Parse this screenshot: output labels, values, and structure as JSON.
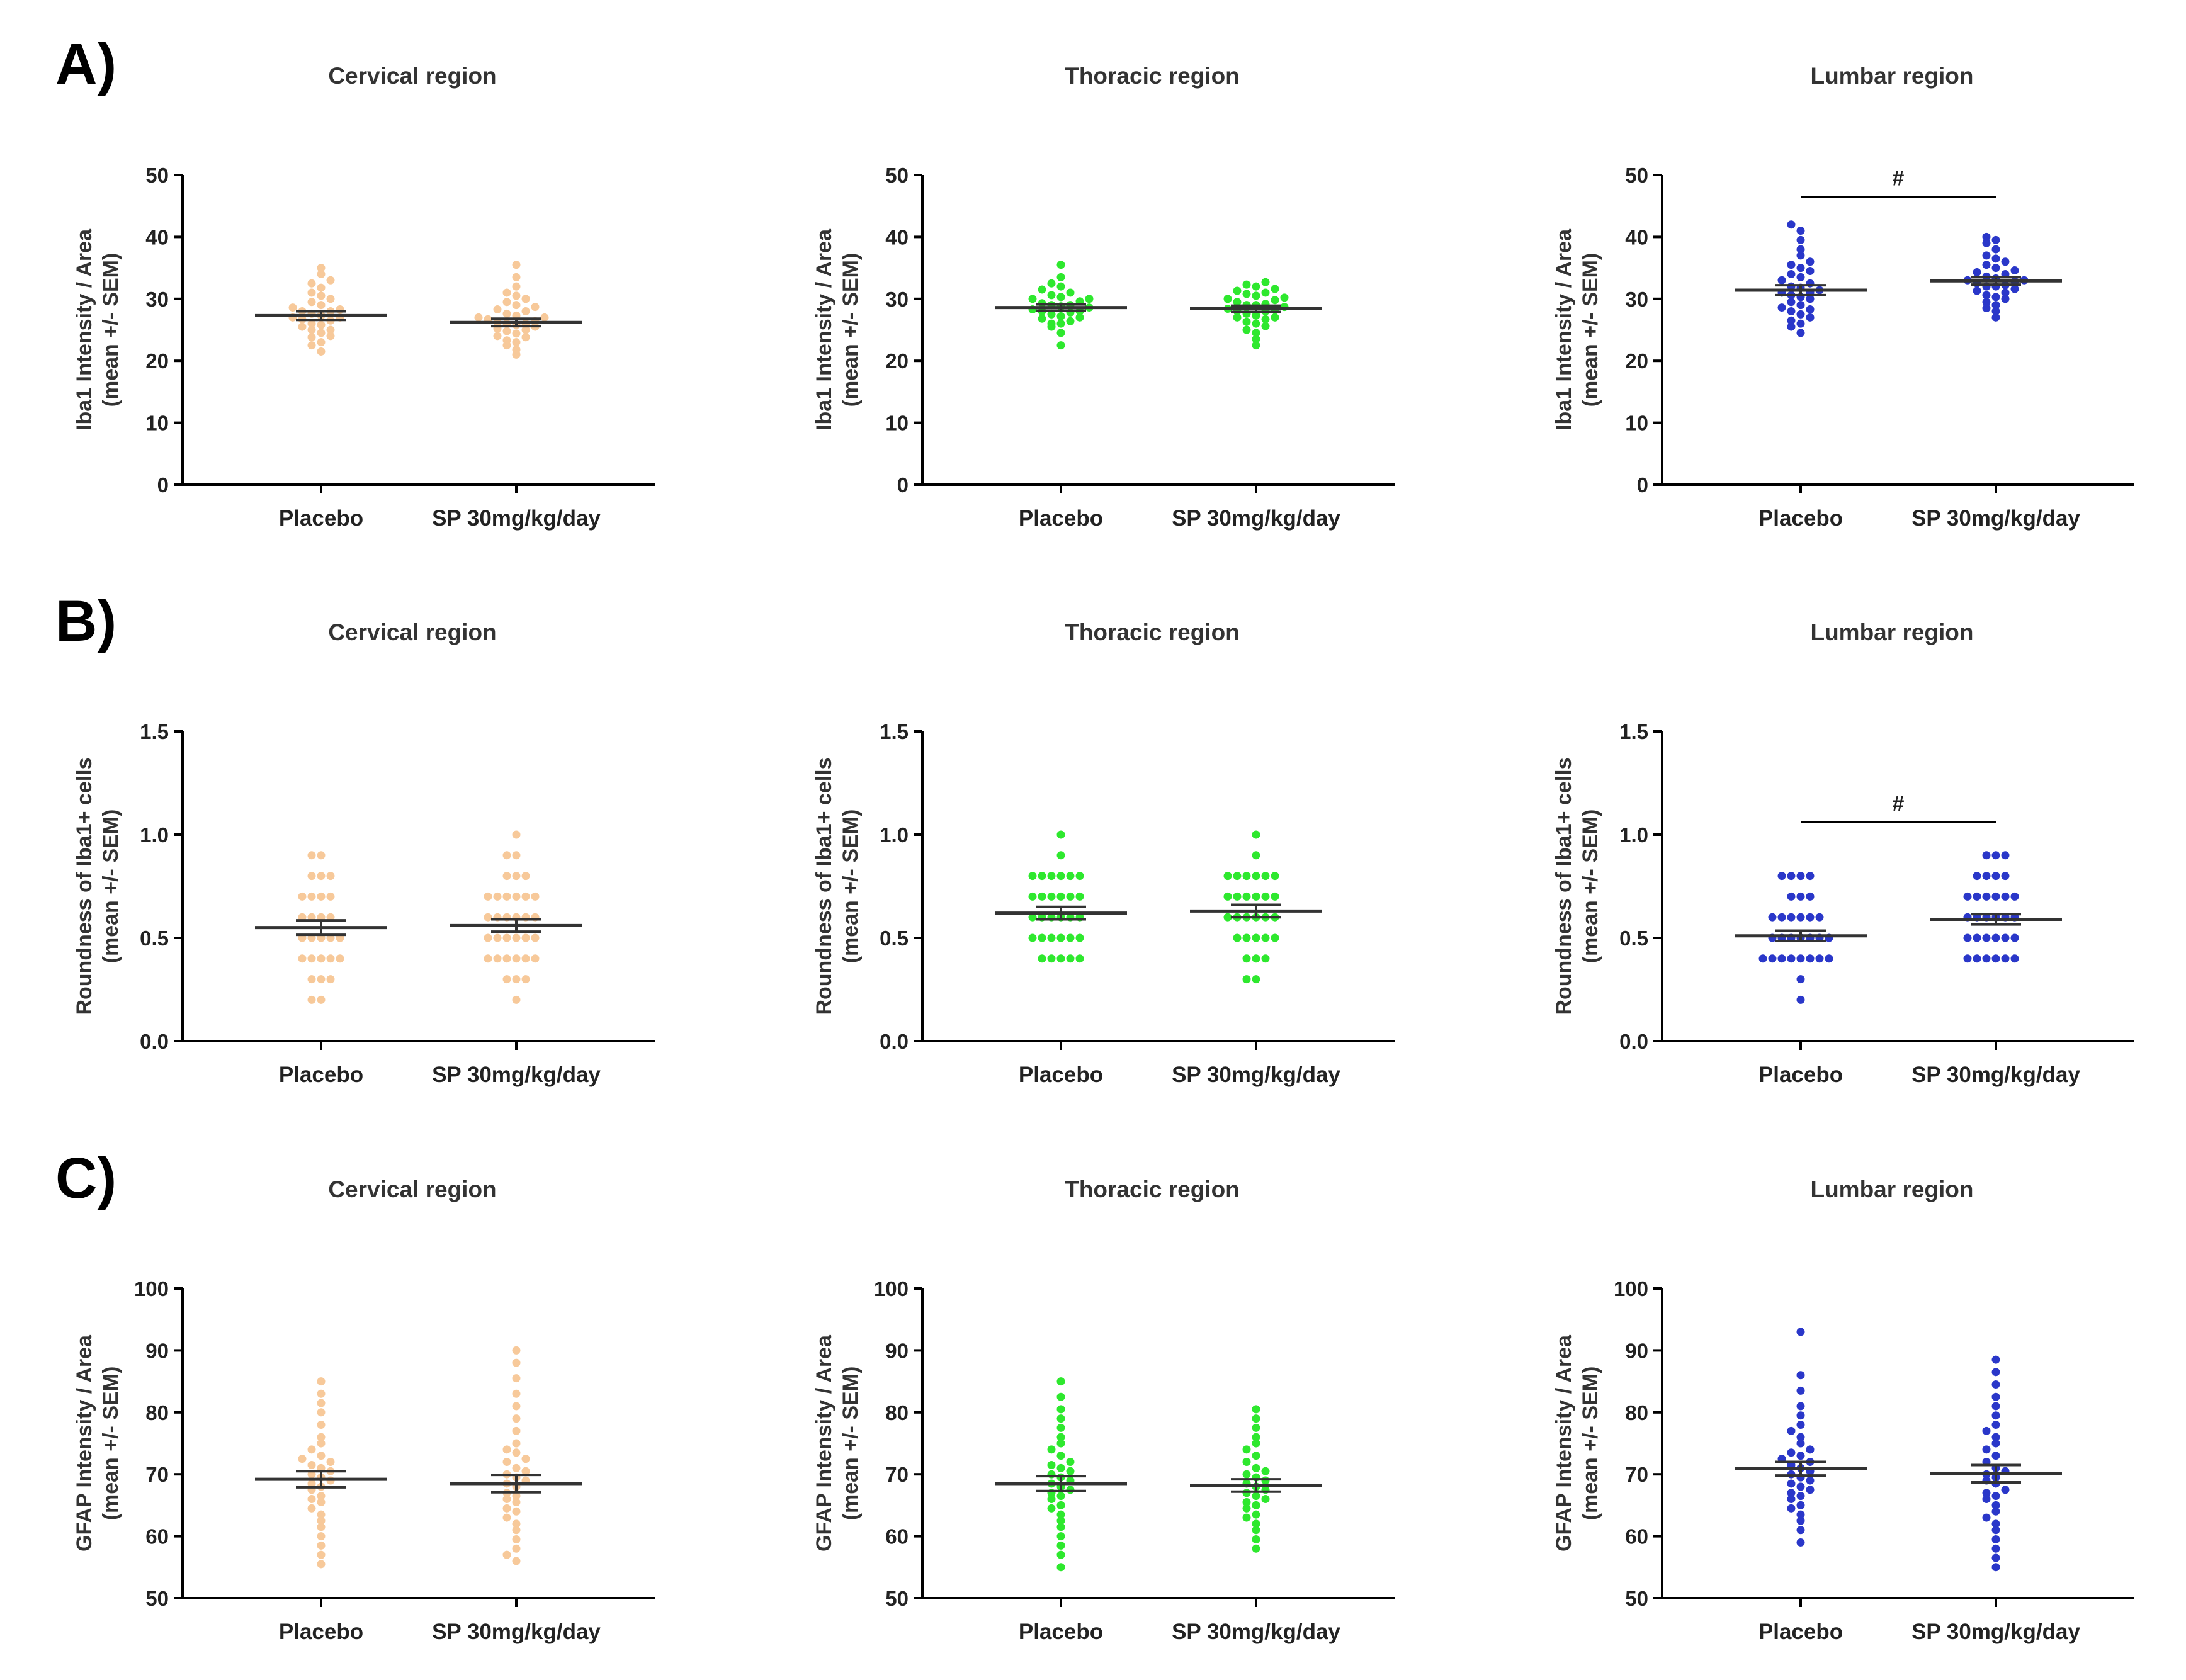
{
  "figure": {
    "rows": [
      {
        "label": "A)",
        "ylabel_line1": "Iba1 Intensity / Area",
        "ylabel_line2": "(mean +/- SEM)"
      },
      {
        "label": "B)",
        "ylabel_line1": "Roundness of Iba1+ cells",
        "ylabel_line2": "(mean +/- SEM)"
      },
      {
        "label": "C)",
        "ylabel_line1": "GFAP Intensity / Area",
        "ylabel_line2": "(mean +/- SEM)"
      }
    ]
  },
  "colors": {
    "cervical": "#f7c99a",
    "thoracic": "#2ee82e",
    "lumbar": "#2a37c9",
    "axis": "#000000",
    "mean_line": "#444444"
  },
  "chart_data": [
    {
      "id": "A-cervical",
      "type": "scatter",
      "title": "Cervical region",
      "series_color": "cervical",
      "ylabel": "Iba1 Intensity / Area (mean +/- SEM)",
      "ylim": [
        0,
        50
      ],
      "yticks": [
        "0",
        "10",
        "20",
        "30",
        "40",
        "50"
      ],
      "ytick_values": [
        0,
        10,
        20,
        30,
        40,
        50
      ],
      "categories": [
        "Placebo",
        "SP 30mg/kg/day"
      ],
      "groups": [
        {
          "name": "Placebo",
          "mean": 27.3,
          "sem": 0.7,
          "values": [
            21.5,
            22.5,
            23,
            23.8,
            24,
            24.5,
            25,
            25,
            25.5,
            25.8,
            26,
            26.5,
            26.7,
            27,
            27,
            27.3,
            27.6,
            28,
            28,
            28.3,
            28.6,
            29,
            29.5,
            30,
            30.5,
            31,
            31.8,
            32.5,
            33,
            34,
            35
          ]
        },
        {
          "name": "SP 30mg/kg/day",
          "mean": 26.2,
          "sem": 0.6,
          "values": [
            21,
            21.8,
            22.5,
            23,
            23.3,
            23.8,
            24,
            24.4,
            24.8,
            25,
            25.2,
            25.5,
            25.8,
            26,
            26,
            26.2,
            26.4,
            26.7,
            27,
            27,
            27.3,
            27.6,
            28,
            28.3,
            28.7,
            29,
            29.5,
            30,
            30.5,
            31,
            32,
            33.5,
            35.5
          ]
        }
      ]
    },
    {
      "id": "A-thoracic",
      "type": "scatter",
      "title": "Thoracic region",
      "series_color": "thoracic",
      "ylabel": "Iba1 Intensity / Area (mean +/- SEM)",
      "ylim": [
        0,
        50
      ],
      "yticks": [
        "0",
        "10",
        "20",
        "30",
        "40",
        "50"
      ],
      "ytick_values": [
        0,
        10,
        20,
        30,
        40,
        50
      ],
      "categories": [
        "Placebo",
        "SP 30mg/kg/day"
      ],
      "groups": [
        {
          "name": "Placebo",
          "mean": 28.6,
          "sem": 0.5,
          "values": [
            22.5,
            24.5,
            25.5,
            26,
            26,
            26.4,
            26.8,
            27,
            27.2,
            27.5,
            27.8,
            28,
            28,
            28.3,
            28.6,
            28.8,
            29,
            29,
            29.3,
            29.6,
            30,
            30,
            30.3,
            30.6,
            31,
            31.5,
            32,
            32.5,
            33.5,
            35.5
          ]
        },
        {
          "name": "SP 30mg/kg/day",
          "mean": 28.4,
          "sem": 0.5,
          "values": [
            22.5,
            23.5,
            24.5,
            25,
            25.6,
            26,
            26.3,
            26.7,
            27,
            27,
            27.3,
            27.6,
            28,
            28,
            28.2,
            28.4,
            28.7,
            29,
            29,
            29.2,
            29.5,
            29.8,
            30,
            30.2,
            30.5,
            30.8,
            31,
            31.3,
            31.6,
            32,
            32.3,
            32.7
          ]
        }
      ]
    },
    {
      "id": "A-lumbar",
      "type": "scatter",
      "title": "Lumbar region",
      "series_color": "lumbar",
      "ylabel": "Iba1 Intensity / Area (mean +/- SEM)",
      "ylim": [
        0,
        50
      ],
      "yticks": [
        "0",
        "10",
        "20",
        "30",
        "40",
        "50"
      ],
      "ytick_values": [
        0,
        10,
        20,
        30,
        40,
        50
      ],
      "categories": [
        "Placebo",
        "SP 30mg/kg/day"
      ],
      "annotation": {
        "text": "#",
        "y": 46.5
      },
      "groups": [
        {
          "name": "Placebo",
          "mean": 31.4,
          "sem": 0.8,
          "values": [
            24.5,
            25.5,
            26,
            26.5,
            27,
            27.5,
            28,
            28.3,
            28.6,
            29,
            29.5,
            30,
            30.3,
            30.6,
            31,
            31,
            31.4,
            31.8,
            32,
            32.5,
            33,
            33.5,
            34,
            34.5,
            35,
            35.5,
            36,
            37,
            38,
            39.5,
            41,
            42
          ]
        },
        {
          "name": "SP 30mg/kg/day",
          "mean": 32.9,
          "sem": 0.6,
          "values": [
            27,
            28,
            28.5,
            29,
            29.5,
            30,
            30.3,
            30.6,
            31,
            31.3,
            31.6,
            32,
            32,
            32.2,
            32.5,
            32.8,
            33,
            33,
            33.3,
            33.6,
            34,
            34.3,
            34.6,
            35,
            35.5,
            36,
            36.5,
            37,
            38,
            39,
            39.5,
            40
          ]
        }
      ]
    },
    {
      "id": "B-cervical",
      "type": "scatter",
      "title": "Cervical region",
      "series_color": "cervical",
      "ylabel": "Roundness of Iba1+ cells (mean +/- SEM)",
      "ylim": [
        0,
        1.5
      ],
      "yticks": [
        "0.0",
        "0.5",
        "1.0",
        "1.5"
      ],
      "ytick_values": [
        0,
        0.5,
        1.0,
        1.5
      ],
      "categories": [
        "Placebo",
        "SP 30mg/kg/day"
      ],
      "groups": [
        {
          "name": "Placebo",
          "mean": 0.55,
          "sem": 0.035,
          "values": [
            0.2,
            0.2,
            0.3,
            0.3,
            0.3,
            0.4,
            0.4,
            0.4,
            0.4,
            0.4,
            0.5,
            0.5,
            0.5,
            0.5,
            0.5,
            0.6,
            0.6,
            0.6,
            0.6,
            0.7,
            0.7,
            0.7,
            0.7,
            0.8,
            0.8,
            0.8,
            0.9,
            0.9
          ]
        },
        {
          "name": "SP 30mg/kg/day",
          "mean": 0.56,
          "sem": 0.03,
          "values": [
            0.2,
            0.3,
            0.3,
            0.3,
            0.4,
            0.4,
            0.4,
            0.4,
            0.4,
            0.4,
            0.5,
            0.5,
            0.5,
            0.5,
            0.5,
            0.5,
            0.6,
            0.6,
            0.6,
            0.6,
            0.6,
            0.6,
            0.7,
            0.7,
            0.7,
            0.7,
            0.7,
            0.7,
            0.8,
            0.8,
            0.8,
            0.9,
            0.9,
            1.0
          ]
        }
      ]
    },
    {
      "id": "B-thoracic",
      "type": "scatter",
      "title": "Thoracic region",
      "series_color": "thoracic",
      "ylabel": "Roundness of Iba1+ cells (mean +/- SEM)",
      "ylim": [
        0,
        1.5
      ],
      "yticks": [
        "0.0",
        "0.5",
        "1.0",
        "1.5"
      ],
      "ytick_values": [
        0,
        0.5,
        1.0,
        1.5
      ],
      "categories": [
        "Placebo",
        "SP 30mg/kg/day"
      ],
      "groups": [
        {
          "name": "Placebo",
          "mean": 0.62,
          "sem": 0.03,
          "values": [
            0.4,
            0.4,
            0.4,
            0.4,
            0.4,
            0.5,
            0.5,
            0.5,
            0.5,
            0.5,
            0.5,
            0.6,
            0.6,
            0.6,
            0.6,
            0.6,
            0.6,
            0.7,
            0.7,
            0.7,
            0.7,
            0.7,
            0.7,
            0.8,
            0.8,
            0.8,
            0.8,
            0.8,
            0.8,
            0.9,
            1.0
          ]
        },
        {
          "name": "SP 30mg/kg/day",
          "mean": 0.63,
          "sem": 0.03,
          "values": [
            0.3,
            0.3,
            0.4,
            0.4,
            0.4,
            0.5,
            0.5,
            0.5,
            0.5,
            0.5,
            0.6,
            0.6,
            0.6,
            0.6,
            0.6,
            0.6,
            0.7,
            0.7,
            0.7,
            0.7,
            0.7,
            0.7,
            0.8,
            0.8,
            0.8,
            0.8,
            0.8,
            0.8,
            0.9,
            1.0
          ]
        }
      ]
    },
    {
      "id": "B-lumbar",
      "type": "scatter",
      "title": "Lumbar region",
      "series_color": "lumbar",
      "ylabel": "Roundness of Iba1+ cells (mean +/- SEM)",
      "ylim": [
        0,
        1.5
      ],
      "yticks": [
        "0.0",
        "0.5",
        "1.0",
        "1.5"
      ],
      "ytick_values": [
        0,
        0.5,
        1.0,
        1.5
      ],
      "categories": [
        "Placebo",
        "SP 30mg/kg/day"
      ],
      "annotation": {
        "text": "#",
        "y": 1.06
      },
      "groups": [
        {
          "name": "Placebo",
          "mean": 0.51,
          "sem": 0.025,
          "values": [
            0.2,
            0.3,
            0.4,
            0.4,
            0.4,
            0.4,
            0.4,
            0.4,
            0.4,
            0.4,
            0.5,
            0.5,
            0.5,
            0.5,
            0.5,
            0.5,
            0.5,
            0.6,
            0.6,
            0.6,
            0.6,
            0.6,
            0.6,
            0.7,
            0.7,
            0.7,
            0.8,
            0.8,
            0.8,
            0.8
          ]
        },
        {
          "name": "SP 30mg/kg/day",
          "mean": 0.59,
          "sem": 0.025,
          "values": [
            0.4,
            0.4,
            0.4,
            0.4,
            0.4,
            0.4,
            0.5,
            0.5,
            0.5,
            0.5,
            0.5,
            0.5,
            0.6,
            0.6,
            0.6,
            0.6,
            0.6,
            0.6,
            0.7,
            0.7,
            0.7,
            0.7,
            0.7,
            0.7,
            0.8,
            0.8,
            0.8,
            0.8,
            0.9,
            0.9,
            0.9
          ]
        }
      ]
    },
    {
      "id": "C-cervical",
      "type": "scatter",
      "title": "Cervical region",
      "series_color": "cervical",
      "ylabel": "GFAP Intensity / Area (mean +/- SEM)",
      "ylim": [
        50,
        100
      ],
      "yticks": [
        "50",
        "60",
        "70",
        "80",
        "90",
        "100"
      ],
      "ytick_values": [
        50,
        60,
        70,
        80,
        90,
        100
      ],
      "categories": [
        "Placebo",
        "SP 30mg/kg/day"
      ],
      "groups": [
        {
          "name": "Placebo",
          "mean": 69.2,
          "sem": 1.3,
          "values": [
            55.5,
            57,
            58.5,
            60,
            61.5,
            62.5,
            63.5,
            64.5,
            65.5,
            66,
            66.5,
            67.5,
            68,
            68.5,
            69,
            69.5,
            70,
            70.5,
            71,
            71.5,
            72,
            72.5,
            73,
            74,
            75,
            76,
            78,
            80,
            81.5,
            83,
            85
          ]
        },
        {
          "name": "SP 30mg/kg/day",
          "mean": 68.5,
          "sem": 1.4,
          "values": [
            56,
            57,
            58,
            59.5,
            61,
            62,
            63,
            64,
            64.5,
            65.5,
            66,
            66.5,
            67,
            68,
            68.5,
            69,
            69.5,
            70,
            70.5,
            71,
            72,
            72.5,
            73.5,
            74,
            75,
            77,
            79,
            81,
            83,
            85.5,
            88,
            90
          ]
        }
      ]
    },
    {
      "id": "C-thoracic",
      "type": "scatter",
      "title": "Thoracic region",
      "series_color": "thoracic",
      "ylabel": "GFAP Intensity / Area (mean +/- SEM)",
      "ylim": [
        50,
        100
      ],
      "yticks": [
        "50",
        "60",
        "70",
        "80",
        "90",
        "100"
      ],
      "ytick_values": [
        50,
        60,
        70,
        80,
        90,
        100
      ],
      "categories": [
        "Placebo",
        "SP 30mg/kg/day"
      ],
      "groups": [
        {
          "name": "Placebo",
          "mean": 68.5,
          "sem": 1.2,
          "values": [
            55,
            57,
            58.5,
            60,
            61.5,
            62.5,
            63.5,
            64.5,
            65,
            66,
            66.5,
            67,
            67.5,
            68,
            68.5,
            69,
            69.5,
            70,
            70.5,
            71,
            71.5,
            72,
            73,
            74,
            75,
            76,
            77.5,
            79,
            80.5,
            82.5,
            85
          ]
        },
        {
          "name": "SP 30mg/kg/day",
          "mean": 68.2,
          "sem": 1.0,
          "values": [
            58,
            59.5,
            61,
            62,
            63,
            63.5,
            64.5,
            65,
            65.5,
            66,
            66.5,
            67,
            67.5,
            68,
            68.5,
            69,
            69.5,
            70,
            70.5,
            71,
            72,
            73,
            74,
            75,
            76,
            77.5,
            79,
            80.5
          ]
        }
      ]
    },
    {
      "id": "C-lumbar",
      "type": "scatter",
      "title": "Lumbar region",
      "series_color": "lumbar",
      "ylabel": "GFAP Intensity / Area (mean +/- SEM)",
      "ylim": [
        50,
        100
      ],
      "yticks": [
        "50",
        "60",
        "70",
        "80",
        "90",
        "100"
      ],
      "ytick_values": [
        50,
        60,
        70,
        80,
        90,
        100
      ],
      "categories": [
        "Placebo",
        "SP 30mg/kg/day"
      ],
      "groups": [
        {
          "name": "Placebo",
          "mean": 70.9,
          "sem": 1.1,
          "values": [
            59,
            61,
            62.5,
            63.5,
            64.5,
            65,
            66,
            66.5,
            67,
            67.5,
            68,
            68.5,
            69,
            69.5,
            70,
            70.5,
            71,
            71.5,
            72,
            72.5,
            73,
            73.5,
            74,
            75,
            76,
            77,
            78,
            79.5,
            81,
            83.5,
            86,
            93
          ]
        },
        {
          "name": "SP 30mg/kg/day",
          "mean": 70.1,
          "sem": 1.4,
          "values": [
            55,
            56.5,
            58,
            59.5,
            61,
            62,
            63,
            64,
            65,
            66,
            66.5,
            67,
            67.5,
            68.5,
            69,
            69.5,
            70,
            70.5,
            71,
            72,
            73,
            74,
            75,
            76,
            77,
            78,
            79.5,
            81,
            82.5,
            84.5,
            86.5,
            88.5
          ]
        }
      ]
    }
  ]
}
